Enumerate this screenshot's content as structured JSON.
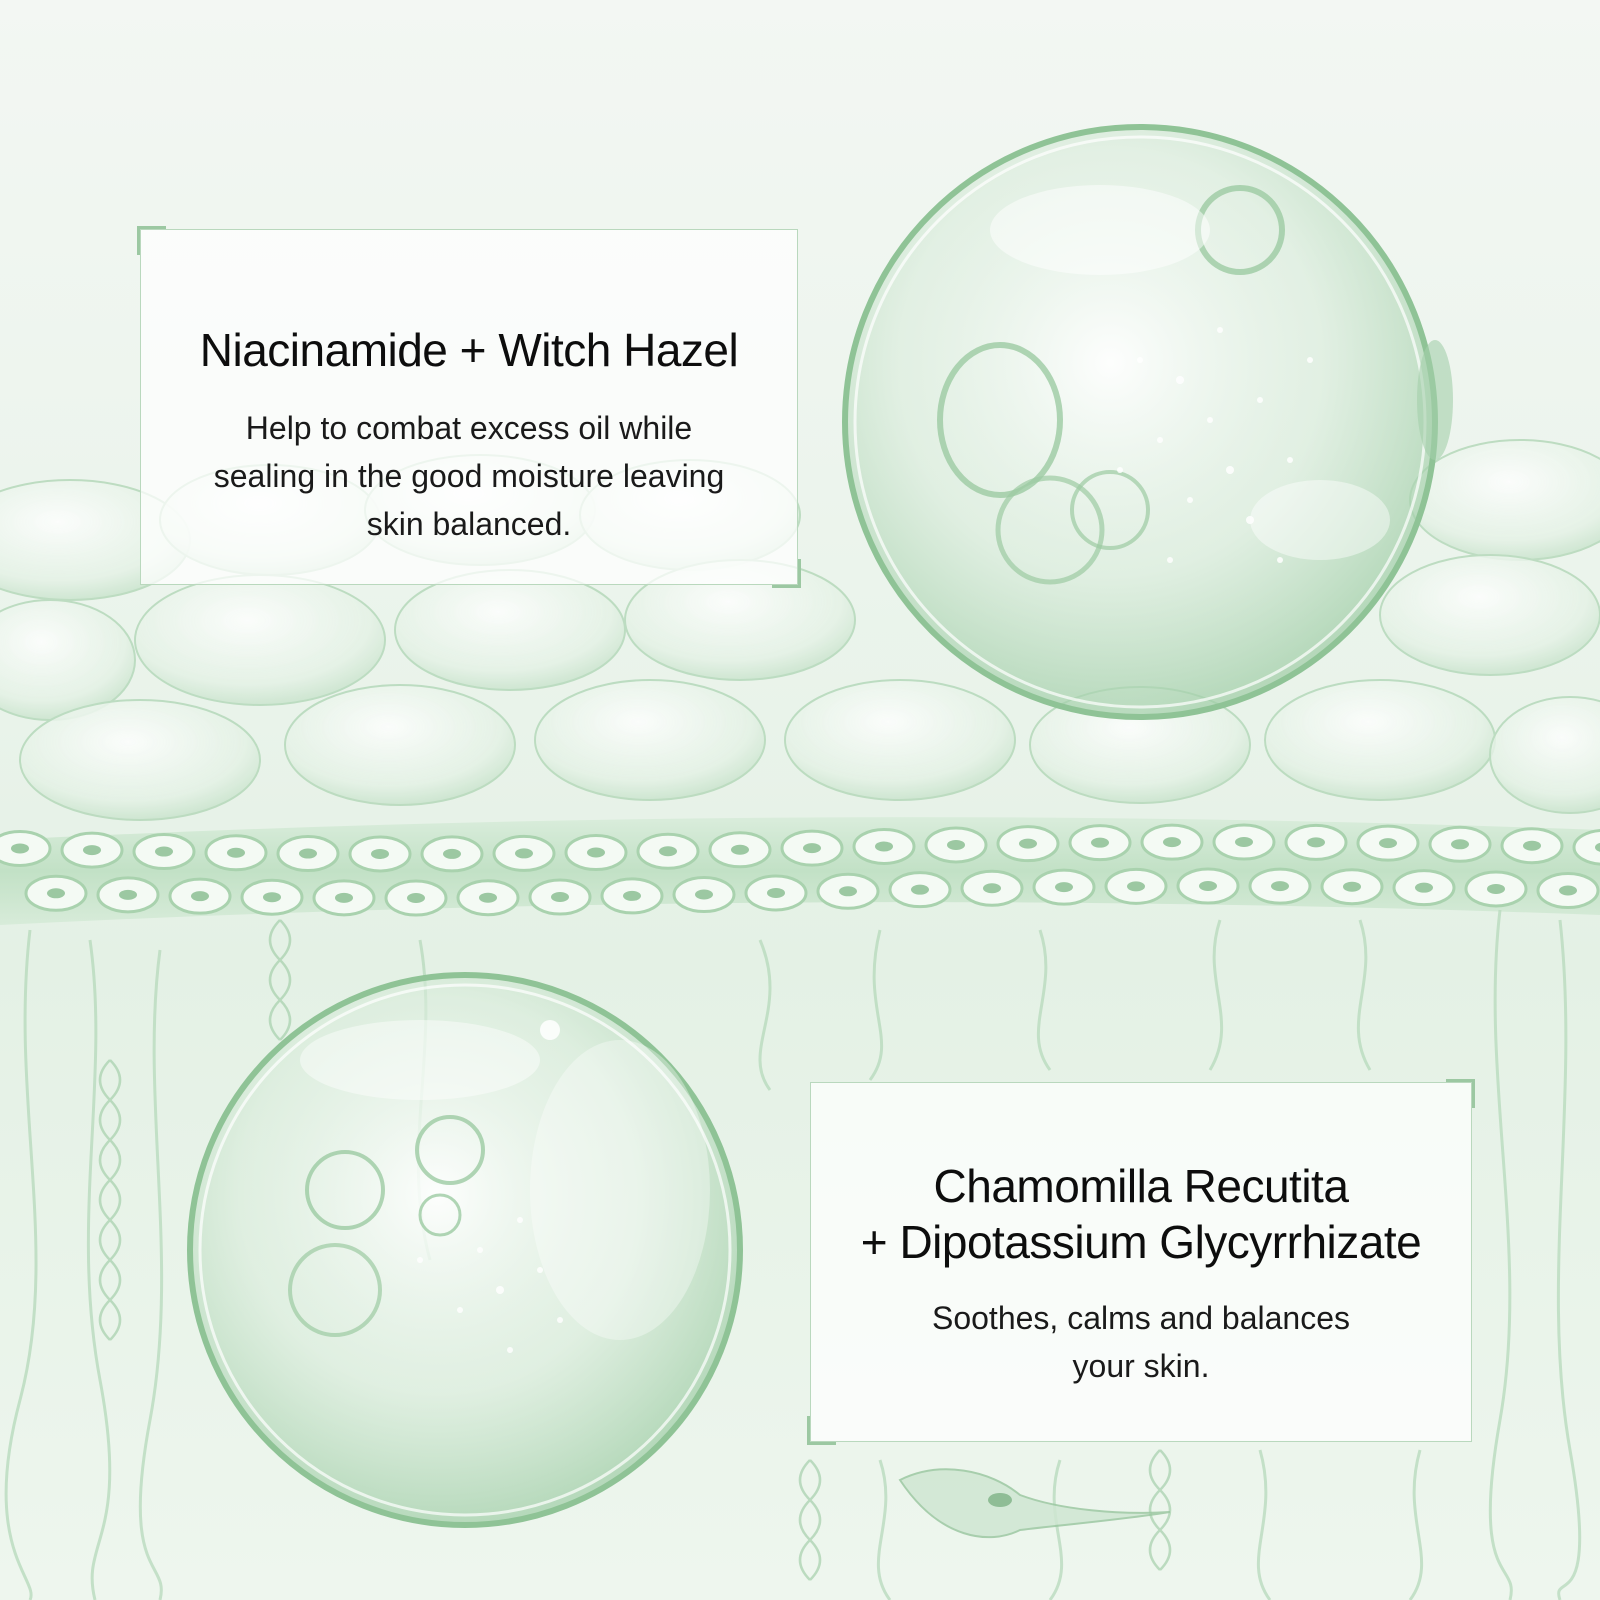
{
  "colors": {
    "background": "#eef5ee",
    "accent_green": "#9cc8a2",
    "text": "#111111"
  },
  "cards": [
    {
      "title": "Niacinamide + Witch Hazel",
      "body_lines": [
        "Help to combat excess oil while",
        "sealing in the good moisture leaving",
        "skin balanced."
      ]
    },
    {
      "title_lines": [
        "Chamomilla Recutita",
        "+ Dipotassium Glycyrrhizate"
      ],
      "body_lines": [
        "Soothes, calms and balances",
        "your skin."
      ]
    }
  ]
}
